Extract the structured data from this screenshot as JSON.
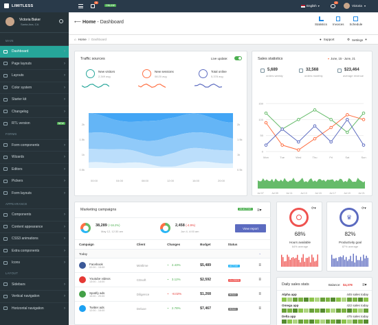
{
  "topbar": {
    "brand": "LIMITLESS",
    "online_label": "ONLINE",
    "notif_count": "9",
    "lang": "English",
    "msg_count": "2",
    "user": "Victoria"
  },
  "sidebar": {
    "user_name": "Victoria Baker",
    "user_loc": "Santa Ana, CA",
    "main_header": "MAIN",
    "main_items": [
      {
        "label": "Dashboard",
        "active": true
      },
      {
        "label": "Page layouts"
      },
      {
        "label": "Layouts"
      },
      {
        "label": "Color system"
      },
      {
        "label": "Starter kit"
      },
      {
        "label": "Changelog"
      },
      {
        "label": "RTL version",
        "badge": "NEW"
      }
    ],
    "forms_header": "FORMS",
    "forms_items": [
      {
        "label": "Form components"
      },
      {
        "label": "Wizards"
      },
      {
        "label": "Editors"
      },
      {
        "label": "Pickers"
      },
      {
        "label": "Form layouts"
      }
    ],
    "appearance_header": "APPEARANCE",
    "appearance_items": [
      {
        "label": "Components"
      },
      {
        "label": "Content appearance"
      },
      {
        "label": "CSS3 animations"
      },
      {
        "label": "Extra components"
      },
      {
        "label": "Icons"
      }
    ],
    "layout_header": "LAYOUT",
    "layout_items": [
      {
        "label": "Sidebars"
      },
      {
        "label": "Vertical navigation"
      },
      {
        "label": "Horizontal navigation"
      }
    ]
  },
  "header": {
    "home": "Home",
    "sep": " - ",
    "page": "Dashboard",
    "crumb_home": "Home",
    "crumb_page": "Dashboard",
    "support": "Support",
    "settings": "Settings",
    "buttons": [
      {
        "label": "Statistics"
      },
      {
        "label": "Invoices"
      },
      {
        "label": "Schedule"
      }
    ]
  },
  "traffic": {
    "title": "Traffic sources",
    "live": "Live update:",
    "stats": [
      {
        "label": "New visitors",
        "value": "2,349 avg",
        "color": "#26a69a"
      },
      {
        "label": "New sessions",
        "value": "08:20 avg",
        "color": "#ff7043"
      },
      {
        "label": "Total online",
        "value": "5,378 avg",
        "color": "#5c6bc0"
      }
    ],
    "y_ticks": [
      "2k",
      "1.5k",
      "1k",
      "0.5k"
    ],
    "x_ticks": [
      "00:00",
      "04:00",
      "08:00",
      "12:00",
      "16:00",
      "20:00"
    ]
  },
  "sales": {
    "title": "Sales statistics",
    "range": "June, 15 - June, 21",
    "stats": [
      {
        "value": "5,689",
        "label": "orders weekly"
      },
      {
        "value": "32,568",
        "label": "orders monthly"
      },
      {
        "value": "$23,464",
        "label": "average revenue"
      }
    ],
    "y_ticks": [
      "150",
      "100",
      "50",
      "0"
    ],
    "days": [
      "Mon",
      "Tue",
      "Wed",
      "Thu",
      "Fri",
      "Sat",
      "Sun"
    ],
    "dates": [
      "Jul 07",
      "Jul 09",
      "Jul 11",
      "Jul 13",
      "Jul 15",
      "Jul 17",
      "Jul 19",
      "Jul 21"
    ]
  },
  "chart_data": {
    "type": "line",
    "categories": [
      "Mon",
      "Tue",
      "Wed",
      "Thu",
      "Fri",
      "Sat",
      "Sun"
    ],
    "ylim": [
      0,
      150
    ],
    "series": [
      {
        "color": "#66bb6a",
        "values": [
          120,
          70,
          100,
          130,
          100,
          60,
          120
        ]
      },
      {
        "color": "#ff7043",
        "values": [
          90,
          20,
          5,
          40,
          75,
          115,
          100
        ]
      },
      {
        "color": "#5c6bc0",
        "values": [
          20,
          70,
          30,
          80,
          30,
          100,
          20
        ]
      }
    ]
  },
  "campaigns": {
    "title": "Marketing campaigns",
    "live_badge": "28 ACTIVE",
    "kpi1": {
      "value": "38,289",
      "change": "(+16.2%)",
      "date": "May 12, 12:30 am"
    },
    "kpi2": {
      "value": "2,458",
      "change": "(-4.9%)",
      "date": "Jun 4, 4:00 am"
    },
    "view_report": "View report",
    "columns": [
      "Campaign",
      "Client",
      "Changes",
      "Budget",
      "Status"
    ],
    "group": "Today",
    "rows": [
      {
        "name": "Facebook",
        "time": "02:00 - 15:00",
        "client": "Mintlime",
        "change": "2.43%",
        "budget": "$5,489",
        "status": "ACTIVE",
        "scolor": "#29b6f6",
        "ccolor": "#4caf50",
        "icolor": "#3b5998"
      },
      {
        "name": "Youtube videos",
        "time": "13:00 - 14:00",
        "client": "CDsoft",
        "change": "3.12%",
        "budget": "$2,592",
        "status": "CLOSED",
        "scolor": "#ef5350",
        "ccolor": "#4caf50",
        "icolor": "#e53935"
      },
      {
        "name": "Spotify ads",
        "time": "10:00 - 20:00",
        "client": "Diligence",
        "change": "-8.02%",
        "budget": "$1,268",
        "status": "HOLD",
        "scolor": "#757575",
        "ccolor": "#e53935",
        "icolor": "#43a047"
      },
      {
        "name": "Twitter ads",
        "time": "12:00 - 15:00",
        "client": "Deluxe",
        "change": "2.78%",
        "budget": "$7,467",
        "status": "HOLD",
        "scolor": "#757575",
        "ccolor": "#4caf50",
        "icolor": "#1da1f2"
      }
    ]
  },
  "hours": {
    "value": "68%",
    "label": "Hours available",
    "sub": "64% average"
  },
  "productivity": {
    "value": "82%",
    "label": "Productivity goal",
    "sub": "87% average"
  },
  "daily": {
    "title": "Daily sales stats",
    "balance_label": "Balance:",
    "balance": "$4,378",
    "rows": [
      {
        "label": "Alpha app",
        "value": "445 sales today"
      },
      {
        "label": "Omega app",
        "value": "422 sales today"
      },
      {
        "label": "Delta app",
        "value": "475 sales today"
      }
    ]
  }
}
